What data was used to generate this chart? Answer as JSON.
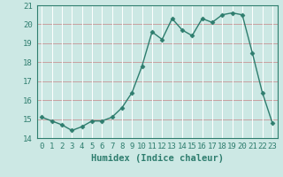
{
  "x": [
    0,
    1,
    2,
    3,
    4,
    5,
    6,
    7,
    8,
    9,
    10,
    11,
    12,
    13,
    14,
    15,
    16,
    17,
    18,
    19,
    20,
    21,
    22,
    23
  ],
  "y": [
    15.1,
    14.9,
    14.7,
    14.4,
    14.6,
    14.9,
    14.9,
    15.1,
    15.6,
    16.4,
    17.8,
    19.6,
    19.2,
    20.3,
    19.7,
    19.4,
    20.3,
    20.1,
    20.5,
    20.6,
    20.5,
    18.5,
    16.4,
    14.8
  ],
  "line_color": "#2e7d6e",
  "marker": "D",
  "marker_size": 2.5,
  "bg_color": "#cce8e4",
  "hgrid_color": "#c8a0a0",
  "vgrid_color": "#ffffff",
  "xlabel": "Humidex (Indice chaleur)",
  "ylim": [
    14,
    21
  ],
  "xlim": [
    -0.5,
    23.5
  ],
  "yticks": [
    14,
    15,
    16,
    17,
    18,
    19,
    20,
    21
  ],
  "xticks": [
    0,
    1,
    2,
    3,
    4,
    5,
    6,
    7,
    8,
    9,
    10,
    11,
    12,
    13,
    14,
    15,
    16,
    17,
    18,
    19,
    20,
    21,
    22,
    23
  ],
  "xlabel_fontsize": 7.5,
  "tick_fontsize": 6.5,
  "tick_color": "#2e7d6e"
}
